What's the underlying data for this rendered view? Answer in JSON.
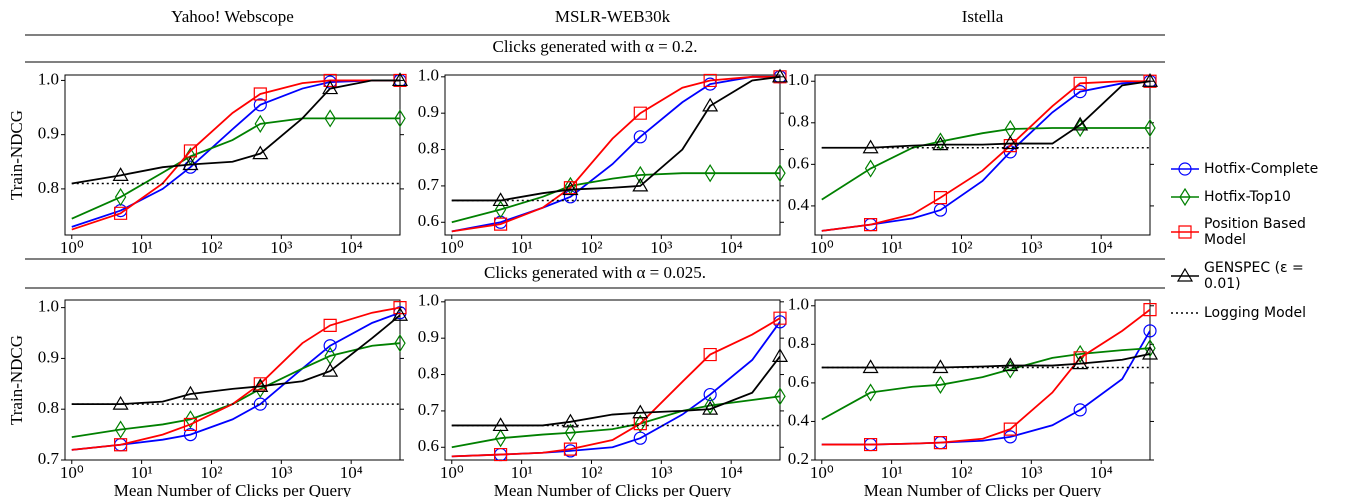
{
  "row_titles": [
    "Clicks generated with α = 0.2.",
    "Clicks generated with α = 0.025."
  ],
  "chart_data": [
    {
      "type": "line",
      "title": "Yahoo! Webscope",
      "ylabel": "Train-NDCG",
      "xscale": "log",
      "x": [
        1,
        5,
        20,
        50,
        200,
        500,
        2000,
        5000,
        20000,
        50000
      ],
      "xlim": [
        0.8,
        50000
      ],
      "xticks": [
        {
          "value": 1,
          "label": "10⁰"
        },
        {
          "value": 10,
          "label": "10¹"
        },
        {
          "value": 100,
          "label": "10²"
        },
        {
          "value": 1000,
          "label": "10³"
        },
        {
          "value": 10000,
          "label": "10⁴"
        }
      ],
      "ylim": [
        0.715,
        1.01
      ],
      "yticks": [
        0.8,
        0.9,
        {
          "value": 1,
          "label": "1.0"
        }
      ],
      "series": [
        {
          "name": "Hotfix-Complete",
          "color": "#0000ff",
          "marker": "circle",
          "values": [
            0.73,
            0.76,
            0.8,
            0.84,
            0.91,
            0.955,
            0.985,
            0.997,
            1.0,
            1.0
          ]
        },
        {
          "name": "Hotfix-Top10",
          "color": "#008000",
          "marker": "diamond",
          "values": [
            0.745,
            0.785,
            0.83,
            0.86,
            0.89,
            0.92,
            0.93,
            0.93,
            0.93,
            0.93
          ]
        },
        {
          "name": "Position Based Model",
          "color": "#ff0000",
          "marker": "square",
          "values": [
            0.725,
            0.755,
            0.81,
            0.87,
            0.94,
            0.975,
            0.995,
            1.0,
            1.0,
            1.0
          ]
        },
        {
          "name": "GENSPEC (ε = 0.01)",
          "color": "#000000",
          "marker": "triangle",
          "values": [
            0.81,
            0.825,
            0.84,
            0.845,
            0.85,
            0.865,
            0.93,
            0.985,
            1.0,
            1.0
          ]
        },
        {
          "name": "Logging Model",
          "color": "#000000",
          "dash": "dotted",
          "values": [
            0.81,
            0.81,
            0.81,
            0.81,
            0.81,
            0.81,
            0.81,
            0.81,
            0.81,
            0.81
          ]
        }
      ]
    },
    {
      "type": "line",
      "title": "MSLR-WEB30k",
      "xscale": "log",
      "x": [
        1,
        5,
        20,
        50,
        200,
        500,
        2000,
        5000,
        20000,
        50000
      ],
      "xlim": [
        0.8,
        50000
      ],
      "xticks": [
        {
          "value": 1,
          "label": "10⁰"
        },
        {
          "value": 10,
          "label": "10¹"
        },
        {
          "value": 100,
          "label": "10²"
        },
        {
          "value": 1000,
          "label": "10³"
        },
        {
          "value": 10000,
          "label": "10⁴"
        }
      ],
      "ylim": [
        0.565,
        1.005
      ],
      "yticks": [
        0.6,
        0.7,
        0.8,
        0.9,
        {
          "value": 1,
          "label": "1.0"
        }
      ],
      "series": [
        {
          "values": [
            0.575,
            0.6,
            0.64,
            0.67,
            0.76,
            0.835,
            0.93,
            0.98,
            1.0,
            1.0
          ]
        },
        {
          "values": [
            0.6,
            0.635,
            0.67,
            0.7,
            0.72,
            0.73,
            0.735,
            0.735,
            0.735,
            0.735
          ]
        },
        {
          "values": [
            0.575,
            0.595,
            0.64,
            0.695,
            0.83,
            0.9,
            0.97,
            0.99,
            1.0,
            1.0
          ]
        },
        {
          "values": [
            0.66,
            0.66,
            0.68,
            0.69,
            0.695,
            0.7,
            0.8,
            0.92,
            0.99,
            1.0
          ]
        },
        {
          "values": [
            0.66,
            0.66,
            0.66,
            0.66,
            0.66,
            0.66,
            0.66,
            0.66,
            0.66,
            0.66
          ]
        }
      ]
    },
    {
      "type": "line",
      "title": "Istella",
      "xscale": "log",
      "x": [
        1,
        5,
        20,
        50,
        200,
        500,
        2000,
        5000,
        20000,
        50000
      ],
      "xlim": [
        0.8,
        50000
      ],
      "xticks": [
        {
          "value": 1,
          "label": "10⁰"
        },
        {
          "value": 10,
          "label": "10¹"
        },
        {
          "value": 100,
          "label": "10²"
        },
        {
          "value": 1000,
          "label": "10³"
        },
        {
          "value": 10000,
          "label": "10⁴"
        }
      ],
      "ylim": [
        0.26,
        1.03
      ],
      "yticks": [
        0.4,
        0.6,
        0.8,
        {
          "value": 1,
          "label": "1.0"
        }
      ],
      "series": [
        {
          "values": [
            0.28,
            0.31,
            0.34,
            0.38,
            0.52,
            0.66,
            0.85,
            0.95,
            0.99,
            1.0
          ]
        },
        {
          "values": [
            0.43,
            0.58,
            0.68,
            0.71,
            0.75,
            0.77,
            0.775,
            0.775,
            0.775,
            0.775
          ]
        },
        {
          "values": [
            0.28,
            0.31,
            0.36,
            0.44,
            0.57,
            0.69,
            0.88,
            0.99,
            1.0,
            1.0
          ]
        },
        {
          "values": [
            0.68,
            0.68,
            0.69,
            0.695,
            0.695,
            0.7,
            0.7,
            0.79,
            0.98,
            1.0
          ]
        },
        {
          "values": [
            0.68,
            0.68,
            0.68,
            0.68,
            0.68,
            0.68,
            0.68,
            0.68,
            0.68,
            0.68
          ]
        }
      ]
    },
    {
      "type": "line",
      "ylabel": "Train-NDCG",
      "xlabel": "Mean Number of Clicks per Query",
      "xscale": "log",
      "x": [
        1,
        5,
        20,
        50,
        200,
        500,
        2000,
        5000,
        20000,
        50000
      ],
      "xlim": [
        0.8,
        50000
      ],
      "xticks": [
        {
          "value": 1,
          "label": "10⁰"
        },
        {
          "value": 10,
          "label": "10¹"
        },
        {
          "value": 100,
          "label": "10²"
        },
        {
          "value": 1000,
          "label": "10³"
        },
        {
          "value": 10000,
          "label": "10⁴"
        }
      ],
      "ylim": [
        0.7,
        1.015
      ],
      "yticks": [
        0.7,
        0.8,
        0.9,
        {
          "value": 1,
          "label": "1.0"
        }
      ],
      "series": [
        {
          "values": [
            0.72,
            0.73,
            0.74,
            0.75,
            0.78,
            0.81,
            0.88,
            0.925,
            0.97,
            0.99
          ]
        },
        {
          "values": [
            0.745,
            0.76,
            0.77,
            0.78,
            0.81,
            0.84,
            0.88,
            0.905,
            0.925,
            0.93
          ]
        },
        {
          "values": [
            0.72,
            0.73,
            0.75,
            0.77,
            0.81,
            0.85,
            0.93,
            0.965,
            0.99,
            1.0
          ]
        },
        {
          "values": [
            0.81,
            0.81,
            0.815,
            0.83,
            0.84,
            0.845,
            0.855,
            0.875,
            0.94,
            0.985
          ]
        },
        {
          "values": [
            0.81,
            0.81,
            0.81,
            0.81,
            0.81,
            0.81,
            0.81,
            0.81,
            0.81,
            0.81
          ]
        }
      ]
    },
    {
      "type": "line",
      "xlabel": "Mean Number of Clicks per Query",
      "xscale": "log",
      "x": [
        1,
        5,
        20,
        50,
        200,
        500,
        2000,
        5000,
        20000,
        50000
      ],
      "xlim": [
        0.8,
        50000
      ],
      "xticks": [
        {
          "value": 1,
          "label": "10⁰"
        },
        {
          "value": 10,
          "label": "10¹"
        },
        {
          "value": 100,
          "label": "10²"
        },
        {
          "value": 1000,
          "label": "10³"
        },
        {
          "value": 10000,
          "label": "10⁴"
        }
      ],
      "ylim": [
        0.565,
        1.005
      ],
      "yticks": [
        0.6,
        0.7,
        0.8,
        0.9,
        {
          "value": 1,
          "label": "1.0"
        }
      ],
      "series": [
        {
          "values": [
            0.575,
            0.58,
            0.585,
            0.59,
            0.6,
            0.625,
            0.69,
            0.745,
            0.84,
            0.945
          ]
        },
        {
          "values": [
            0.6,
            0.625,
            0.635,
            0.64,
            0.65,
            0.665,
            0.7,
            0.715,
            0.73,
            0.74
          ]
        },
        {
          "values": [
            0.575,
            0.58,
            0.585,
            0.595,
            0.62,
            0.665,
            0.78,
            0.855,
            0.91,
            0.955
          ]
        },
        {
          "values": [
            0.66,
            0.66,
            0.66,
            0.67,
            0.69,
            0.695,
            0.7,
            0.705,
            0.75,
            0.85
          ]
        },
        {
          "values": [
            0.66,
            0.66,
            0.66,
            0.66,
            0.66,
            0.66,
            0.66,
            0.66,
            0.66,
            0.66
          ]
        }
      ]
    },
    {
      "type": "line",
      "xlabel": "Mean Number of Clicks per Query",
      "xscale": "log",
      "x": [
        1,
        5,
        20,
        50,
        200,
        500,
        2000,
        5000,
        20000,
        50000
      ],
      "xlim": [
        0.8,
        50000
      ],
      "xticks": [
        {
          "value": 1,
          "label": "10⁰"
        },
        {
          "value": 10,
          "label": "10¹"
        },
        {
          "value": 100,
          "label": "10²"
        },
        {
          "value": 1000,
          "label": "10³"
        },
        {
          "value": 10000,
          "label": "10⁴"
        }
      ],
      "ylim": [
        0.2,
        1.03
      ],
      "yticks": [
        0.2,
        0.4,
        0.6,
        0.8,
        {
          "value": 1,
          "label": "1.0"
        }
      ],
      "series": [
        {
          "values": [
            0.28,
            0.28,
            0.285,
            0.29,
            0.3,
            0.32,
            0.38,
            0.46,
            0.62,
            0.87
          ]
        },
        {
          "values": [
            0.41,
            0.55,
            0.58,
            0.59,
            0.63,
            0.67,
            0.73,
            0.75,
            0.77,
            0.78
          ]
        },
        {
          "values": [
            0.28,
            0.28,
            0.285,
            0.29,
            0.31,
            0.36,
            0.55,
            0.73,
            0.87,
            0.98
          ]
        },
        {
          "values": [
            0.68,
            0.68,
            0.68,
            0.68,
            0.685,
            0.69,
            0.69,
            0.7,
            0.72,
            0.75
          ]
        },
        {
          "values": [
            0.68,
            0.68,
            0.68,
            0.68,
            0.68,
            0.68,
            0.68,
            0.68,
            0.68,
            0.68
          ]
        }
      ]
    }
  ]
}
